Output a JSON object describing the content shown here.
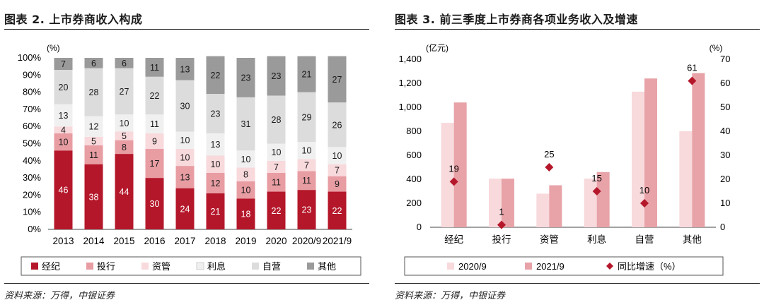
{
  "left": {
    "title": "图表 2. 上市券商收入构成",
    "source": "资料来源：万得，中银证券"
  },
  "right": {
    "title": "图表 3. 前三季度上市券商各项业务收入及增速",
    "source": "资料来源：万得，中银证券"
  },
  "chart_data": [
    {
      "type": "bar",
      "stacked": true,
      "title": "上市券商收入构成",
      "ylabel": "(%)",
      "ylim": [
        0,
        100
      ],
      "yticks": [
        "0%",
        "10%",
        "20%",
        "30%",
        "40%",
        "50%",
        "60%",
        "70%",
        "80%",
        "90%",
        "100%"
      ],
      "categories": [
        "2013",
        "2014",
        "2015",
        "2016",
        "2017",
        "2018",
        "2019",
        "2020",
        "2020/9",
        "2021/9"
      ],
      "series": [
        {
          "name": "经纪",
          "color": "#b5172a",
          "label_color": "#ffffff",
          "values": [
            46,
            38,
            44,
            30,
            24,
            21,
            18,
            22,
            23,
            22
          ]
        },
        {
          "name": "投行",
          "color": "#e89da3",
          "label_color": "#1a1a1a",
          "values": [
            10,
            11,
            8,
            17,
            13,
            12,
            10,
            11,
            11,
            9
          ]
        },
        {
          "name": "资管",
          "color": "#f8d9dc",
          "label_color": "#1a1a1a",
          "values": [
            4,
            5,
            5,
            9,
            10,
            10,
            8,
            7,
            7,
            7
          ]
        },
        {
          "name": "利息",
          "color": "#f0f0f0",
          "label_color": "#1a1a1a",
          "values": [
            13,
            12,
            10,
            11,
            10,
            13,
            10,
            10,
            10,
            10
          ]
        },
        {
          "name": "自营",
          "color": "#dcdcdc",
          "label_color": "#1a1a1a",
          "values": [
            20,
            28,
            27,
            22,
            30,
            23,
            31,
            28,
            29,
            26
          ]
        },
        {
          "name": "其他",
          "color": "#9a9a9a",
          "label_color": "#1a1a1a",
          "values": [
            7,
            6,
            6,
            11,
            13,
            22,
            23,
            23,
            21,
            27
          ]
        }
      ],
      "legend": "bottom",
      "grid": false
    },
    {
      "type": "bar",
      "title": "前三季度上市券商各项业务收入及增速",
      "ylabel": "(亿元)",
      "ylabel_right": "(%)",
      "ylim": [
        0,
        1400
      ],
      "ylim_right": [
        0,
        70
      ],
      "yticks": [
        "0",
        "200",
        "400",
        "600",
        "800",
        "1,000",
        "1,200",
        "1,400"
      ],
      "yticks_right": [
        "0",
        "10",
        "20",
        "30",
        "40",
        "50",
        "60",
        "70"
      ],
      "categories": [
        "经纪",
        "投行",
        "资管",
        "利息",
        "自营",
        "其他"
      ],
      "series": [
        {
          "name": "2020/9",
          "color": "#f8d9dc",
          "values": [
            870,
            405,
            280,
            405,
            1130,
            800
          ]
        },
        {
          "name": "2021/9",
          "color": "#e8a3a8",
          "values": [
            1040,
            405,
            350,
            460,
            1240,
            1285
          ]
        }
      ],
      "line_series": {
        "name": "同比增速（%）",
        "color": "#b5172a",
        "axis": "right",
        "values": [
          19,
          1,
          25,
          15,
          10,
          61
        ]
      },
      "legend": "bottom",
      "grid": false
    }
  ]
}
